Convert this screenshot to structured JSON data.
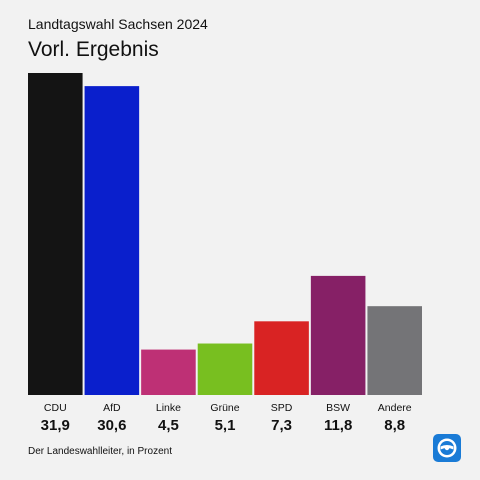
{
  "header": {
    "supertitle": "Landtagswahl Sachsen 2024",
    "title": "Vorl. Ergebnis"
  },
  "footer": {
    "source": "Der Landeswahlleiter, in Prozent"
  },
  "logo": {
    "icon": "tagesschau-logo-icon",
    "color": "#1a7bd6"
  },
  "chart_data": {
    "type": "bar",
    "categories": [
      "CDU",
      "AfD",
      "Linke",
      "Grüne",
      "SPD",
      "BSW",
      "Andere"
    ],
    "values": [
      31.9,
      30.6,
      4.5,
      5.1,
      7.3,
      11.8,
      8.8
    ],
    "value_labels": [
      "31,9",
      "30,6",
      "4,5",
      "5,1",
      "7,3",
      "11,8",
      "8,8"
    ],
    "colors": [
      "#141414",
      "#0a1fcc",
      "#be3075",
      "#78bf20",
      "#d92323",
      "#862066",
      "#747477"
    ],
    "ylim": [
      0,
      32
    ],
    "grid": false,
    "legend": "none"
  }
}
